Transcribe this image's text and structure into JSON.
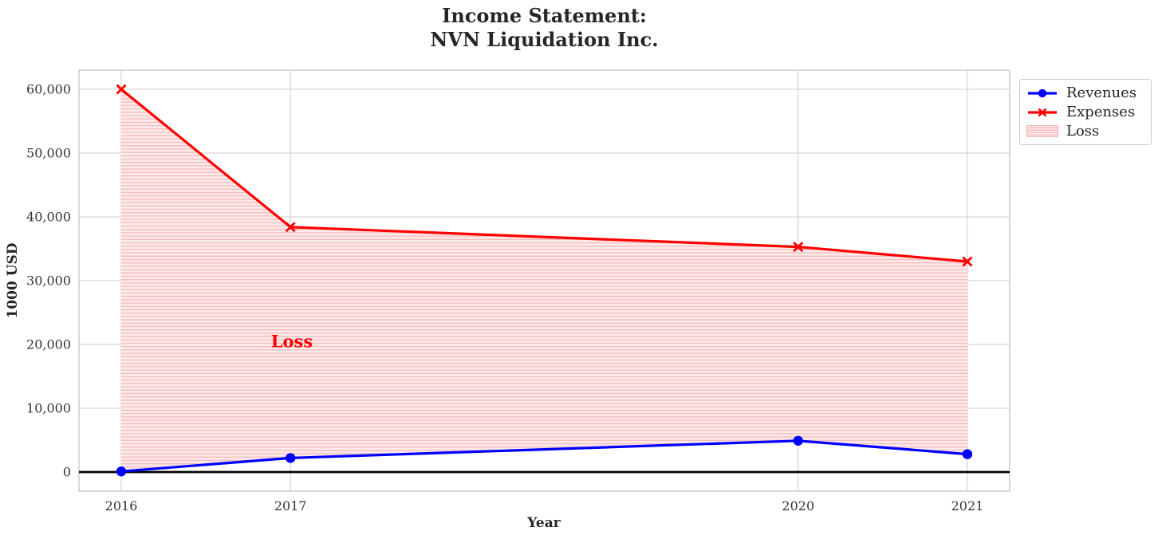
{
  "title": {
    "line1": "Income Statement:",
    "line2": "NVN Liquidation Inc."
  },
  "axes": {
    "xlabel": "Year",
    "ylabel": "1000 USD"
  },
  "annotation": {
    "text": "Loss"
  },
  "legend": {
    "items": [
      {
        "label": "Revenues"
      },
      {
        "label": "Expenses"
      },
      {
        "label": "Loss"
      }
    ]
  },
  "colors": {
    "revenues": "#0000ff",
    "expenses": "#ff0000",
    "loss_fill_bg": "#fdeaea",
    "loss_fill_hatch": "#f6bdbd",
    "grid": "#cccccc",
    "axes_border": "#c8c8c8",
    "zero_line": "#000000",
    "tick_text": "#333333"
  },
  "chart_data": {
    "type": "line",
    "title": "Income Statement: NVN Liquidation Inc.",
    "xlabel": "Year",
    "ylabel": "1000 USD",
    "x": [
      2016,
      2017,
      2020,
      2021
    ],
    "xtick_labels": [
      "2016",
      "2017",
      "2020",
      "2021"
    ],
    "series": [
      {
        "name": "Revenues",
        "color": "#0000ff",
        "marker": "circle",
        "values": [
          100,
          2200,
          4900,
          2800
        ]
      },
      {
        "name": "Expenses",
        "color": "#ff0000",
        "marker": "x",
        "values": [
          60000,
          38400,
          35300,
          33000
        ]
      }
    ],
    "fill_between": {
      "label": "Loss",
      "upper_series": "Expenses",
      "lower_series": "Revenues",
      "hatch": "horizontal",
      "color": "#ff0000"
    },
    "annotations": [
      {
        "text": "Loss",
        "x": 2017,
        "y": 20500,
        "color": "#ff0000"
      }
    ],
    "yticks": [
      0,
      10000,
      20000,
      30000,
      40000,
      50000,
      60000
    ],
    "ylim": [
      -3000,
      63000
    ],
    "xlim": [
      2015.75,
      2021.25
    ],
    "grid": true,
    "zero_line": 0,
    "legend_position": "outside upper right"
  }
}
